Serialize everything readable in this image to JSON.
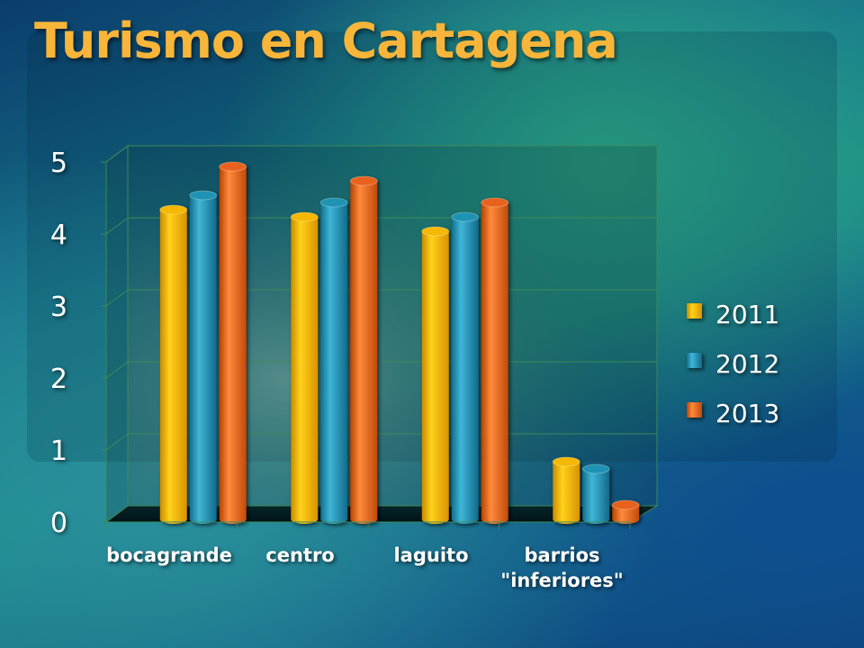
{
  "chart_data": {
    "type": "bar",
    "title": "Turismo en Cartagena",
    "categories": [
      "bocagrande",
      "centro",
      "laguito",
      "barrios \"inferiores\""
    ],
    "category_lines": [
      [
        "bocagrande"
      ],
      [
        "centro"
      ],
      [
        "laguito"
      ],
      [
        "barrios",
        "\"inferiores\""
      ]
    ],
    "series": [
      {
        "name": "2011",
        "values": [
          4.3,
          4.2,
          4.0,
          0.8
        ],
        "color": "#f5b800"
      },
      {
        "name": "2012",
        "values": [
          4.5,
          4.4,
          4.2,
          0.7
        ],
        "color": "#1f93b4"
      },
      {
        "name": "2013",
        "values": [
          4.9,
          4.7,
          4.4,
          0.2
        ],
        "color": "#e8621e"
      }
    ],
    "ylim": [
      0,
      5
    ],
    "yticks": [
      "0",
      "1",
      "2",
      "3",
      "4",
      "5"
    ],
    "xlabel": "",
    "ylabel": "",
    "legend_position": "right",
    "grid": true
  }
}
